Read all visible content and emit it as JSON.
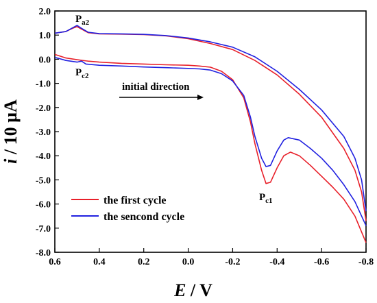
{
  "chart_data": {
    "type": "line",
    "xlabel": {
      "italic": "E",
      "rest": " / V"
    },
    "ylabel": {
      "italic": "i",
      "rest": " / 10 µA"
    },
    "xlim": [
      0.6,
      -0.8
    ],
    "ylim": [
      -8.0,
      2.0
    ],
    "x_ticks": [
      "0.6",
      "0.4",
      "0.2",
      "0.0",
      "-0.2",
      "-0.4",
      "-0.6",
      "-0.8"
    ],
    "y_ticks": [
      "2.0",
      "1.0",
      "0.0",
      "-1.0",
      "-2.0",
      "-3.0",
      "-4.0",
      "-5.0",
      "-6.0",
      "-7.0",
      "-8.0"
    ],
    "colors": {
      "first": "#e8202a",
      "second": "#2020e0",
      "overlap": "#8a3a2a"
    },
    "annotations": {
      "pa2": {
        "main": "P",
        "sub": "a2"
      },
      "pc2": {
        "main": "P",
        "sub": "c2"
      },
      "pc1": {
        "main": "P",
        "sub": "c1"
      },
      "direction": "initial direction"
    },
    "series": [
      {
        "name": "the first cycle",
        "color": "#e8202a",
        "forward": [
          [
            0.6,
            0.2
          ],
          [
            0.55,
            0.05
          ],
          [
            0.5,
            -0.02
          ],
          [
            0.45,
            -0.08
          ],
          [
            0.4,
            -0.12
          ],
          [
            0.3,
            -0.17
          ],
          [
            0.2,
            -0.2
          ],
          [
            0.1,
            -0.23
          ],
          [
            0.0,
            -0.25
          ],
          [
            -0.05,
            -0.28
          ],
          [
            -0.1,
            -0.33
          ],
          [
            -0.15,
            -0.5
          ],
          [
            -0.2,
            -0.85
          ],
          [
            -0.25,
            -1.6
          ],
          [
            -0.28,
            -2.6
          ],
          [
            -0.3,
            -3.5
          ],
          [
            -0.33,
            -4.6
          ],
          [
            -0.35,
            -5.15
          ],
          [
            -0.37,
            -5.1
          ],
          [
            -0.4,
            -4.5
          ],
          [
            -0.43,
            -4.0
          ],
          [
            -0.46,
            -3.85
          ],
          [
            -0.5,
            -4.0
          ],
          [
            -0.55,
            -4.4
          ],
          [
            -0.6,
            -4.85
          ],
          [
            -0.65,
            -5.3
          ],
          [
            -0.7,
            -5.8
          ],
          [
            -0.75,
            -6.5
          ],
          [
            -0.8,
            -7.6
          ]
        ],
        "reverse": [
          [
            -0.8,
            -6.7
          ],
          [
            -0.78,
            -5.5
          ],
          [
            -0.75,
            -4.6
          ],
          [
            -0.7,
            -3.7
          ],
          [
            -0.6,
            -2.4
          ],
          [
            -0.5,
            -1.45
          ],
          [
            -0.4,
            -0.65
          ],
          [
            -0.3,
            -0.05
          ],
          [
            -0.2,
            0.4
          ],
          [
            -0.1,
            0.65
          ],
          [
            0.0,
            0.85
          ],
          [
            0.1,
            0.97
          ],
          [
            0.2,
            1.02
          ],
          [
            0.3,
            1.04
          ],
          [
            0.4,
            1.05
          ],
          [
            0.45,
            1.1
          ],
          [
            0.48,
            1.25
          ],
          [
            0.5,
            1.35
          ],
          [
            0.52,
            1.28
          ],
          [
            0.55,
            1.15
          ],
          [
            0.6,
            1.08
          ]
        ]
      },
      {
        "name": "the sencond cycle",
        "color": "#2020e0",
        "forward": [
          [
            0.6,
            0.08
          ],
          [
            0.55,
            -0.05
          ],
          [
            0.5,
            -0.12
          ],
          [
            0.48,
            -0.08
          ],
          [
            0.46,
            -0.2
          ],
          [
            0.4,
            -0.25
          ],
          [
            0.3,
            -0.28
          ],
          [
            0.2,
            -0.32
          ],
          [
            0.1,
            -0.35
          ],
          [
            0.0,
            -0.38
          ],
          [
            -0.05,
            -0.4
          ],
          [
            -0.1,
            -0.45
          ],
          [
            -0.15,
            -0.6
          ],
          [
            -0.2,
            -0.9
          ],
          [
            -0.25,
            -1.5
          ],
          [
            -0.28,
            -2.4
          ],
          [
            -0.3,
            -3.2
          ],
          [
            -0.33,
            -4.1
          ],
          [
            -0.35,
            -4.45
          ],
          [
            -0.37,
            -4.4
          ],
          [
            -0.4,
            -3.8
          ],
          [
            -0.43,
            -3.35
          ],
          [
            -0.45,
            -3.25
          ],
          [
            -0.5,
            -3.35
          ],
          [
            -0.55,
            -3.7
          ],
          [
            -0.6,
            -4.1
          ],
          [
            -0.65,
            -4.6
          ],
          [
            -0.7,
            -5.2
          ],
          [
            -0.75,
            -5.9
          ],
          [
            -0.8,
            -6.9
          ]
        ],
        "reverse": [
          [
            -0.8,
            -6.3
          ],
          [
            -0.78,
            -5.0
          ],
          [
            -0.75,
            -4.1
          ],
          [
            -0.7,
            -3.2
          ],
          [
            -0.6,
            -2.1
          ],
          [
            -0.5,
            -1.25
          ],
          [
            -0.4,
            -0.5
          ],
          [
            -0.3,
            0.1
          ],
          [
            -0.2,
            0.5
          ],
          [
            -0.1,
            0.72
          ],
          [
            0.0,
            0.88
          ],
          [
            0.1,
            0.98
          ],
          [
            0.2,
            1.03
          ],
          [
            0.3,
            1.05
          ],
          [
            0.4,
            1.06
          ],
          [
            0.45,
            1.12
          ],
          [
            0.48,
            1.28
          ],
          [
            0.5,
            1.4
          ],
          [
            0.52,
            1.3
          ],
          [
            0.55,
            1.15
          ],
          [
            0.6,
            1.08
          ]
        ]
      }
    ]
  }
}
